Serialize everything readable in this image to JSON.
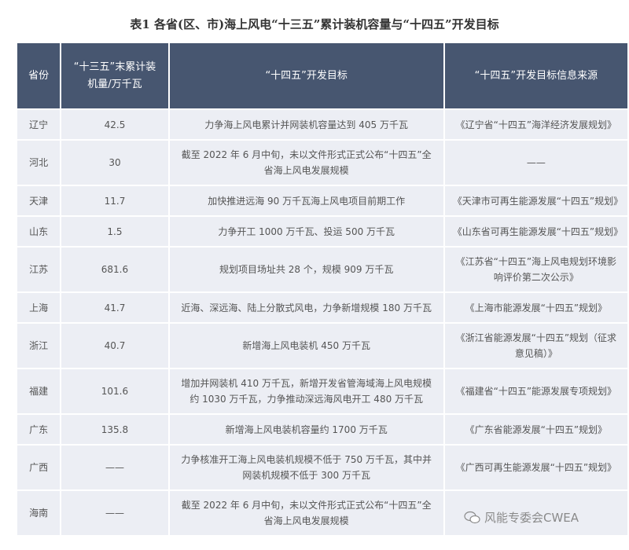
{
  "title": "表1 各省(区、市)海上风电“十三五”累计装机容量与“十四五”开发目标",
  "headers": [
    "省份",
    "“十三五”末累计装机量/万千瓦",
    "“十四五”开发目标",
    "“十四五”开发目标信息来源"
  ],
  "rows": [
    {
      "province": "辽宁",
      "capacity": "42.5",
      "target": "力争海上风电累计并网装机容量达到 405 万千瓦",
      "source": "《辽宁省“十四五”海洋经济发展规划》"
    },
    {
      "province": "河北",
      "capacity": "30",
      "target": "截至 2022 年 6 月中旬，未以文件形式正式公布“十四五”全省海上风电发展规模",
      "source": "——"
    },
    {
      "province": "天津",
      "capacity": "11.7",
      "target": "加快推进远海 90 万千瓦海上风电项目前期工作",
      "source": "《天津市可再生能源发展“十四五”规划》"
    },
    {
      "province": "山东",
      "capacity": "1.5",
      "target": "力争开工 1000 万千瓦、投运 500 万千瓦",
      "source": "《山东省可再生能源发展“十四五”规划》"
    },
    {
      "province": "江苏",
      "capacity": "681.6",
      "target": "规划项目场址共 28 个，规模 909 万千瓦",
      "source": "《江苏省“十四五”海上风电规划环境影响评价第二次公示》"
    },
    {
      "province": "上海",
      "capacity": "41.7",
      "target": "近海、深远海、陆上分散式风电，力争新增规模 180 万千瓦",
      "source": "《上海市能源发展“十四五”规划》"
    },
    {
      "province": "浙江",
      "capacity": "40.7",
      "target": "新增海上风电装机 450 万千瓦",
      "source": "《浙江省能源发展“十四五”规划（征求意见稿）》"
    },
    {
      "province": "福建",
      "capacity": "101.6",
      "target": "增加并网装机 410 万千瓦，新增开发省管海域海上风电规模约 1030 万千瓦，力争推动深远海风电开工 480 万千瓦",
      "source": "《福建省“十四五”能源发展专项规划》"
    },
    {
      "province": "广东",
      "capacity": "135.8",
      "target": "新增海上风电装机容量约 1700 万千瓦",
      "source": "《广东省能源发展“十四五”规划》"
    },
    {
      "province": "广西",
      "capacity": "——",
      "target": "力争核准开工海上风电装机规模不低于 750 万千瓦，其中并网装机规模不低于 300 万千瓦",
      "source": "《广西可再生能源发展“十四五”规划》"
    },
    {
      "province": "海南",
      "capacity": "——",
      "target": "截至 2022 年 6 月中旬，未以文件形式正式公布“十四五”全省海上风电发展规模",
      "source": ""
    }
  ],
  "watermark": {
    "text": "风能专委会CWEA",
    "icon": "wechat-icon"
  },
  "colors": {
    "header_bg": "#475670",
    "cell_bg": "#eceef4"
  }
}
